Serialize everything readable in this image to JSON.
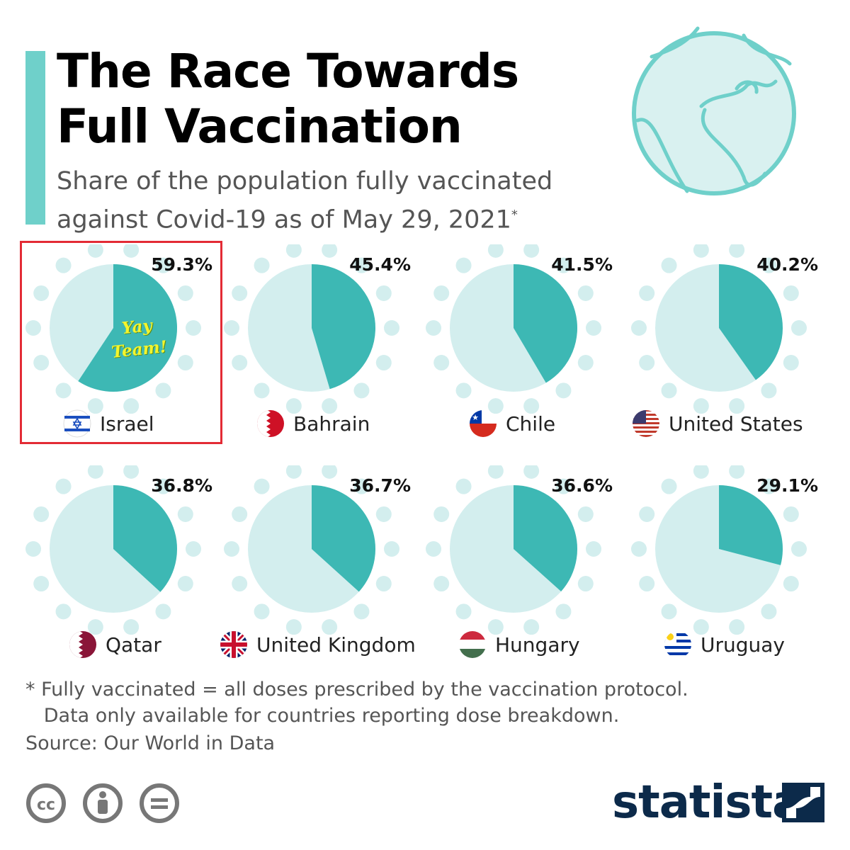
{
  "header": {
    "title_line1": "The Race Towards",
    "title_line2": "Full Vaccination",
    "subtitle_line1": "Share of the population fully vaccinated",
    "subtitle_line2": "against Covid-19 as of May 29, 2021",
    "subtitle_mark": "*"
  },
  "chart_data": {
    "type": "pie",
    "unit": "%",
    "items": [
      {
        "country": "Israel",
        "value": 59.3,
        "label": "59.3%",
        "flag": "israel-flag-icon"
      },
      {
        "country": "Bahrain",
        "value": 45.4,
        "label": "45.4%",
        "flag": "bahrain-flag-icon"
      },
      {
        "country": "Chile",
        "value": 41.5,
        "label": "41.5%",
        "flag": "chile-flag-icon"
      },
      {
        "country": "United States",
        "value": 40.2,
        "label": "40.2%",
        "flag": "usa-flag-icon"
      },
      {
        "country": "Qatar",
        "value": 36.8,
        "label": "36.8%",
        "flag": "qatar-flag-icon"
      },
      {
        "country": "United Kingdom",
        "value": 36.7,
        "label": "36.7%",
        "flag": "uk-flag-icon"
      },
      {
        "country": "Hungary",
        "value": 36.6,
        "label": "36.6%",
        "flag": "hungary-flag-icon"
      },
      {
        "country": "Uruguay",
        "value": 29.1,
        "label": "29.1%",
        "flag": "uruguay-flag-icon"
      }
    ],
    "colors": {
      "filled": "#3db8b4",
      "remaining": "#d3eeee",
      "dots": "#d3eeee"
    }
  },
  "annotation": {
    "line1": "Yay",
    "line2": "Team!"
  },
  "footnote": {
    "line1": "* Fully vaccinated = all doses prescribed by the vaccination protocol.",
    "line2": "   Data only available for countries reporting dose breakdown."
  },
  "source": "Source: Our World in Data",
  "brand": {
    "name": "statista",
    "color": "#0c2a4a"
  },
  "license_icons": [
    "cc-icon",
    "attribution-icon",
    "no-derivatives-icon"
  ],
  "accent_color": "#6fd0ca"
}
